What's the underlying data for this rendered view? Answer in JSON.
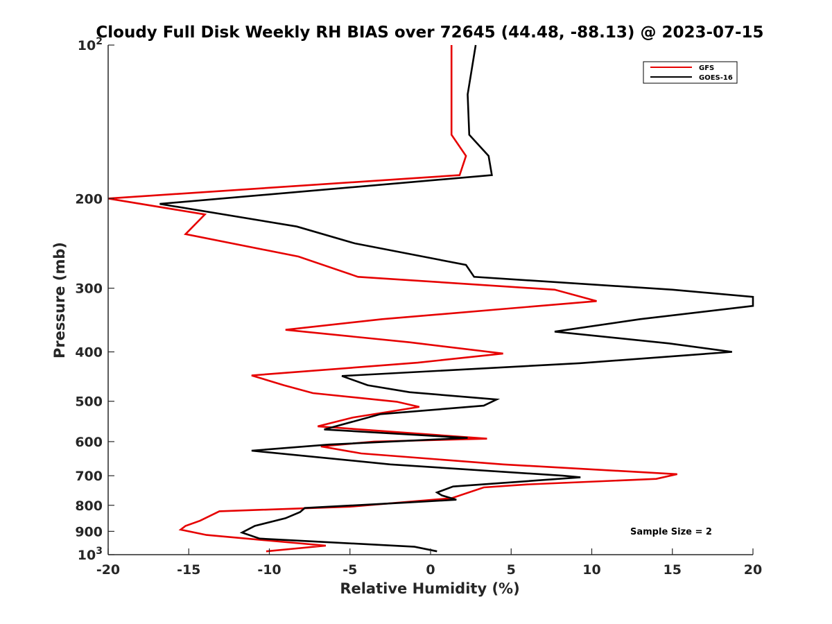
{
  "chart_data": {
    "type": "line",
    "title": "Cloudy Full Disk Weekly RH BIAS over 72645 (44.48, -88.13) @ 2023-07-15",
    "xlabel": "Relative Humidity (%)",
    "ylabel": "Pressure (mb)",
    "xlim": [
      -20,
      20
    ],
    "ylim": [
      100,
      1000
    ],
    "y_scale": "log",
    "y_reversed": true,
    "x_ticks": [
      -20,
      -15,
      -10,
      -5,
      0,
      5,
      10,
      15,
      20
    ],
    "x_tick_labels": [
      "-20",
      "-15",
      "-10",
      "-5",
      "0",
      "5",
      "10",
      "15",
      "20"
    ],
    "y_ticks": [
      100,
      200,
      300,
      400,
      500,
      600,
      700,
      800,
      900,
      1000
    ],
    "y_tick_labels": [
      {
        "base": "10",
        "exp": "2"
      },
      {
        "base": "200",
        "exp": ""
      },
      {
        "base": "300",
        "exp": ""
      },
      {
        "base": "400",
        "exp": ""
      },
      {
        "base": "500",
        "exp": ""
      },
      {
        "base": "600",
        "exp": ""
      },
      {
        "base": "700",
        "exp": ""
      },
      {
        "base": "800",
        "exp": ""
      },
      {
        "base": "900",
        "exp": ""
      },
      {
        "base": "10",
        "exp": "3"
      }
    ],
    "grid": false,
    "legend_position": "top-right",
    "annotation": "Sample Size = 2",
    "series": [
      {
        "name": "GFS",
        "color": "#e60000",
        "points": [
          [
            1.3,
            100
          ],
          [
            1.3,
            150
          ],
          [
            2.2,
            165
          ],
          [
            1.8,
            180
          ],
          [
            -20,
            200
          ],
          [
            -14,
            215
          ],
          [
            -15.2,
            235
          ],
          [
            -8.2,
            260
          ],
          [
            -4.5,
            285
          ],
          [
            7.7,
            302
          ],
          [
            10.3,
            318
          ],
          [
            -3,
            345
          ],
          [
            -9,
            362
          ],
          [
            -1.3,
            383
          ],
          [
            4.5,
            403
          ],
          [
            -0.8,
            420
          ],
          [
            -11.1,
            445
          ],
          [
            -9.1,
            465
          ],
          [
            -7.3,
            482
          ],
          [
            -2.1,
            501
          ],
          [
            -0.7,
            513
          ],
          [
            -4.8,
            538
          ],
          [
            -7,
            560
          ],
          [
            3.5,
            592
          ],
          [
            -3.5,
            600
          ],
          [
            -6.8,
            613
          ],
          [
            -4.3,
            633
          ],
          [
            4.5,
            665
          ],
          [
            15.3,
            695
          ],
          [
            14,
            710
          ],
          [
            6,
            728
          ],
          [
            3.3,
            738
          ],
          [
            1.3,
            775
          ],
          [
            -5,
            805
          ],
          [
            -13.1,
            822
          ],
          [
            -14.3,
            858
          ],
          [
            -15.2,
            878
          ],
          [
            -15.5,
            893
          ],
          [
            -13.9,
            915
          ],
          [
            -6.5,
            960
          ],
          [
            -10.2,
            985
          ]
        ]
      },
      {
        "name": "GOES-16",
        "color": "#000000",
        "points": [
          [
            2.8,
            100
          ],
          [
            2.3,
            125
          ],
          [
            2.4,
            150
          ],
          [
            3.6,
            165
          ],
          [
            3.8,
            180
          ],
          [
            -16.8,
            205
          ],
          [
            -8.3,
            227
          ],
          [
            -4.7,
            245
          ],
          [
            2.2,
            270
          ],
          [
            2.7,
            285
          ],
          [
            15,
            302
          ],
          [
            20,
            312
          ],
          [
            20,
            325
          ],
          [
            13,
            345
          ],
          [
            7.7,
            365
          ],
          [
            14.8,
            385
          ],
          [
            18.7,
            400
          ],
          [
            9.3,
            421
          ],
          [
            -5.5,
            446
          ],
          [
            -3.9,
            465
          ],
          [
            -1.3,
            480
          ],
          [
            4.1,
            496
          ],
          [
            3.3,
            510
          ],
          [
            -3.1,
            530
          ],
          [
            -6.6,
            568
          ],
          [
            2.3,
            590
          ],
          [
            -6.3,
            608
          ],
          [
            -11.1,
            625
          ],
          [
            -2.5,
            665
          ],
          [
            8.2,
            700
          ],
          [
            9.3,
            705
          ],
          [
            1.4,
            735
          ],
          [
            0.4,
            755
          ],
          [
            0.7,
            765
          ],
          [
            1.6,
            780
          ],
          [
            -1.5,
            790
          ],
          [
            -7.8,
            810
          ],
          [
            -8.1,
            825
          ],
          [
            -9,
            848
          ],
          [
            -10.9,
            878
          ],
          [
            -11.7,
            905
          ],
          [
            -10.6,
            930
          ],
          [
            -1,
            965
          ],
          [
            0.4,
            985
          ]
        ]
      }
    ]
  }
}
